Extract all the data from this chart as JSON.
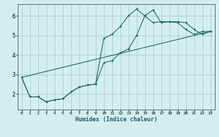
{
  "title": "",
  "xlabel": "Humidex (Indice chaleur)",
  "ylabel": "",
  "bg_color": "#d4eeee",
  "grid_color": "#aacccc",
  "line_color": "#1a6a5a",
  "xlim": [
    -0.5,
    23.5
  ],
  "ylim": [
    1.2,
    6.6
  ],
  "yticks": [
    2,
    3,
    4,
    5,
    6
  ],
  "xticks": [
    0,
    1,
    2,
    3,
    4,
    5,
    6,
    7,
    8,
    9,
    10,
    11,
    12,
    13,
    14,
    15,
    16,
    17,
    18,
    19,
    20,
    21,
    22,
    23
  ],
  "line1_x": [
    0,
    1,
    2,
    3,
    4,
    5,
    6,
    7,
    8,
    9,
    10,
    11,
    12,
    13,
    14,
    15,
    16,
    17,
    18,
    19,
    20,
    21,
    22,
    23
  ],
  "line1_y": [
    2.85,
    1.85,
    1.85,
    1.6,
    1.7,
    1.75,
    2.1,
    2.35,
    2.45,
    2.5,
    3.6,
    3.7,
    4.1,
    4.3,
    5.0,
    6.0,
    6.3,
    5.65,
    5.7,
    5.7,
    5.65,
    5.3,
    5.05,
    5.2
  ],
  "line2_x": [
    0,
    1,
    2,
    3,
    4,
    5,
    6,
    7,
    8,
    9,
    10,
    11,
    12,
    13,
    14,
    15,
    16,
    17,
    18,
    19,
    20,
    21,
    22,
    23
  ],
  "line2_y": [
    2.85,
    1.85,
    1.85,
    1.6,
    1.7,
    1.75,
    2.1,
    2.35,
    2.45,
    2.5,
    4.85,
    5.05,
    5.45,
    6.0,
    6.35,
    6.0,
    5.65,
    5.7,
    5.7,
    5.65,
    5.3,
    5.05,
    5.2,
    5.2
  ],
  "line3_x": [
    0,
    23
  ],
  "line3_y": [
    2.85,
    5.2
  ]
}
